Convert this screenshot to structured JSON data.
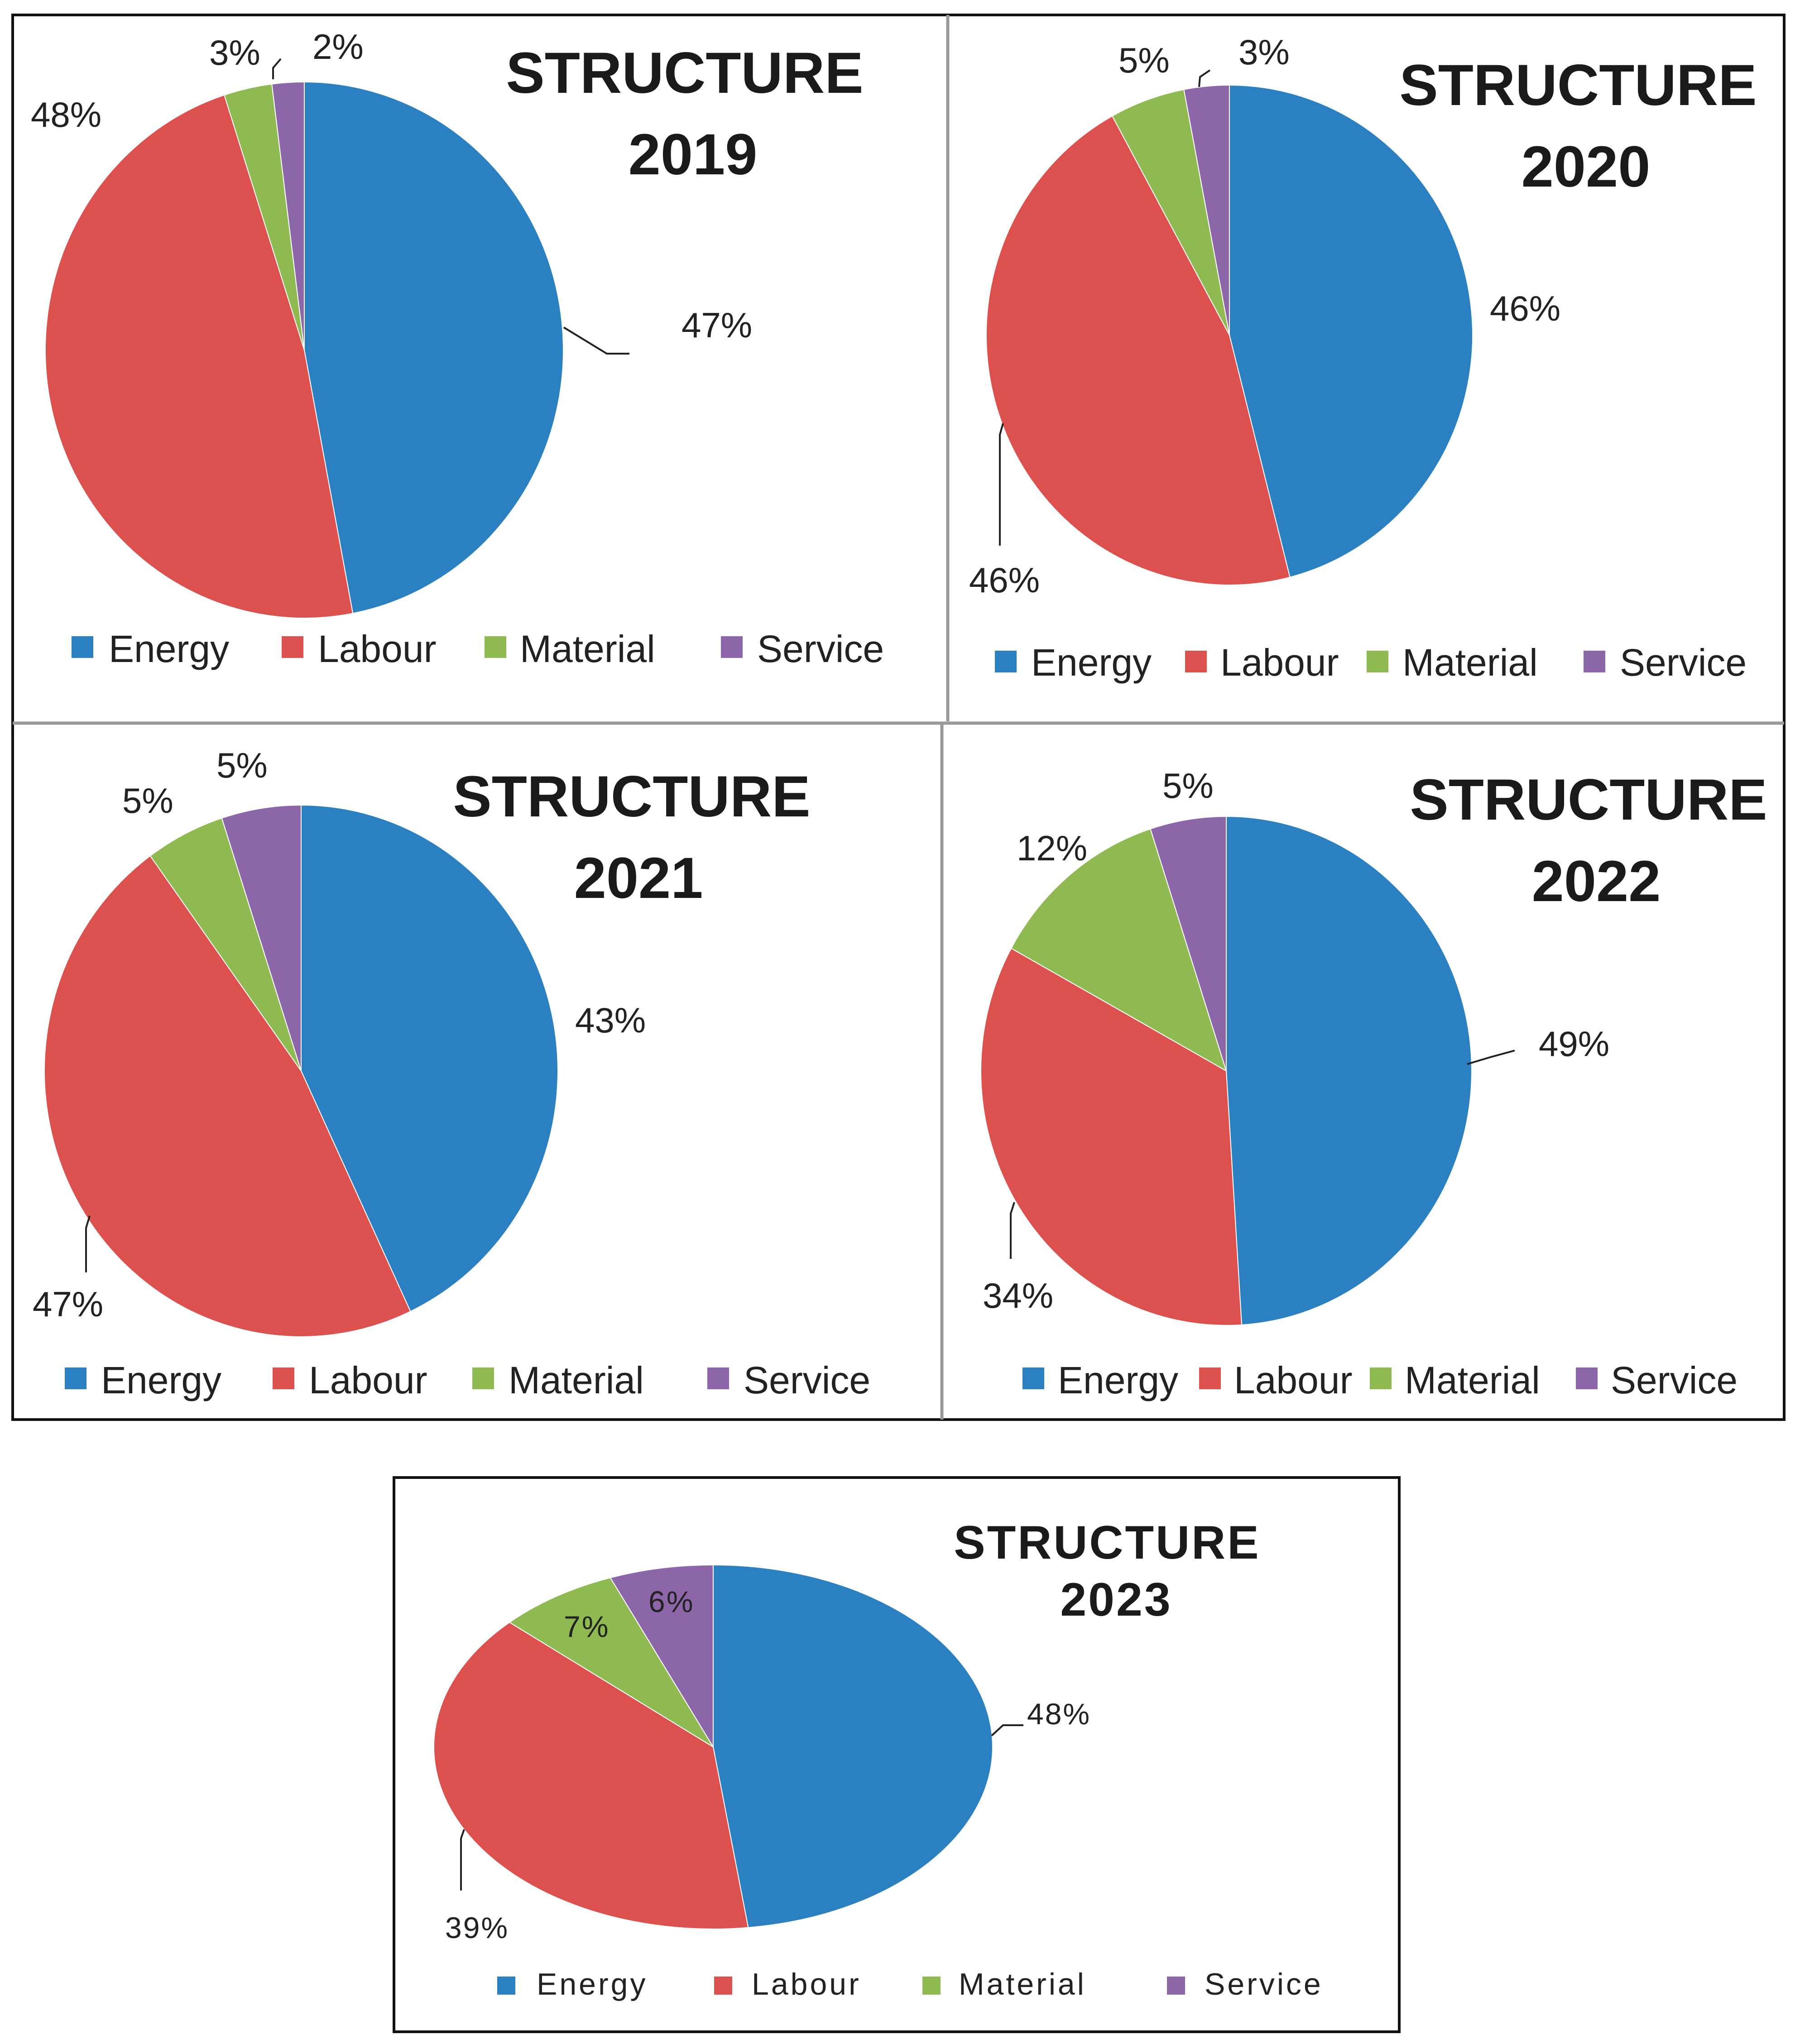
{
  "colors": {
    "Energy": "#2a80c0",
    "Labour": "#dc504e",
    "Material": "#8fba52",
    "Service": "#8c66a8"
  },
  "legend_labels": [
    "Energy",
    "Labour",
    "Material",
    "Service"
  ],
  "chart_data": [
    {
      "type": "pie",
      "title_line1": "STRUCTURE",
      "title_line2": "2019",
      "categories": [
        "Energy",
        "Labour",
        "Material",
        "Service"
      ],
      "values": [
        47,
        48,
        3,
        2
      ],
      "labels": [
        "47%",
        "48%",
        "3%",
        "2%"
      ]
    },
    {
      "type": "pie",
      "title_line1": "STRUCTURE",
      "title_line2": "2020",
      "categories": [
        "Energy",
        "Labour",
        "Material",
        "Service"
      ],
      "values": [
        46,
        46,
        5,
        3
      ],
      "labels": [
        "46%",
        "46%",
        "5%",
        "3%"
      ]
    },
    {
      "type": "pie",
      "title_line1": "STRUCTURE",
      "title_line2": "2021",
      "categories": [
        "Energy",
        "Labour",
        "Material",
        "Service"
      ],
      "values": [
        43,
        47,
        5,
        5
      ],
      "labels": [
        "43%",
        "47%",
        "5%",
        "5%"
      ]
    },
    {
      "type": "pie",
      "title_line1": "STRUCTURE",
      "title_line2": "2022",
      "categories": [
        "Energy",
        "Labour",
        "Material",
        "Service"
      ],
      "values": [
        49,
        34,
        12,
        5
      ],
      "labels": [
        "49%",
        "34%",
        "12%",
        "5%"
      ]
    },
    {
      "type": "pie",
      "title_line1": "STRUCTURE",
      "title_line2": "2023",
      "categories": [
        "Energy",
        "Labour",
        "Material",
        "Service"
      ],
      "values": [
        48,
        39,
        7,
        6
      ],
      "labels": [
        "48%",
        "39%",
        "7%",
        "6%"
      ]
    }
  ]
}
